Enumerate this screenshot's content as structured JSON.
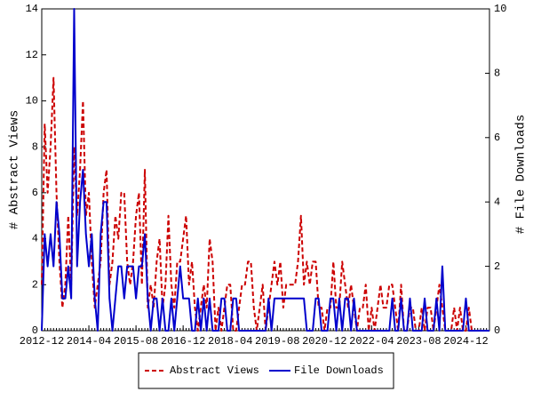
{
  "chart_data": {
    "type": "line",
    "x": [
      "2012-12",
      "2013-01",
      "2013-02",
      "2013-03",
      "2013-04",
      "2013-05",
      "2013-06",
      "2013-07",
      "2013-08",
      "2013-09",
      "2013-10",
      "2013-11",
      "2013-12",
      "2014-01",
      "2014-02",
      "2014-03",
      "2014-04",
      "2014-05",
      "2014-06",
      "2014-07",
      "2014-08",
      "2014-09",
      "2014-10",
      "2014-11",
      "2014-12",
      "2015-01",
      "2015-02",
      "2015-03",
      "2015-04",
      "2015-05",
      "2015-06",
      "2015-07",
      "2015-08",
      "2015-09",
      "2015-10",
      "2015-11",
      "2015-12",
      "2016-01",
      "2016-02",
      "2016-03",
      "2016-04",
      "2016-05",
      "2016-06",
      "2016-07",
      "2016-08",
      "2016-09",
      "2016-10",
      "2016-11",
      "2016-12",
      "2017-01",
      "2017-02",
      "2017-03",
      "2017-04",
      "2017-05",
      "2017-06",
      "2017-07",
      "2017-08",
      "2017-09",
      "2017-10",
      "2017-11",
      "2017-12",
      "2018-01",
      "2018-02",
      "2018-03",
      "2018-04",
      "2018-05",
      "2018-06",
      "2018-07",
      "2018-08",
      "2018-09",
      "2018-10",
      "2018-11",
      "2018-12",
      "2019-01",
      "2019-02",
      "2019-03",
      "2019-04",
      "2019-05",
      "2019-06",
      "2019-07",
      "2019-08",
      "2019-09",
      "2019-10",
      "2019-11",
      "2019-12",
      "2020-01",
      "2020-02",
      "2020-03",
      "2020-04",
      "2020-05",
      "2020-06",
      "2020-07",
      "2020-08",
      "2020-09",
      "2020-10",
      "2020-11",
      "2020-12",
      "2021-01",
      "2021-02",
      "2021-03",
      "2021-04",
      "2021-05",
      "2021-06",
      "2021-07",
      "2021-08",
      "2021-09",
      "2021-10",
      "2021-11",
      "2021-12",
      "2022-01",
      "2022-02",
      "2022-03",
      "2022-04",
      "2022-05",
      "2022-06",
      "2022-07",
      "2022-08",
      "2022-09",
      "2022-10",
      "2022-11",
      "2022-12",
      "2023-01",
      "2023-02",
      "2023-03",
      "2023-04",
      "2023-05",
      "2023-06",
      "2023-07",
      "2023-08",
      "2023-09",
      "2023-10",
      "2023-11",
      "2023-12",
      "2024-01",
      "2024-02",
      "2024-03",
      "2024-04",
      "2024-05",
      "2024-06",
      "2024-07",
      "2024-08",
      "2024-09",
      "2024-10",
      "2024-11",
      "2024-12",
      "2025-01",
      "2025-02",
      "2025-03",
      "2025-04",
      "2025-05",
      "2025-06",
      "2025-07",
      "2025-08"
    ],
    "xticks": [
      "2012-12",
      "2014-04",
      "2015-08",
      "2016-12",
      "2018-04",
      "2019-08",
      "2020-12",
      "2022-04",
      "2023-08",
      "2024-12"
    ],
    "y_label": "# Abstract Views",
    "y2_label": "# File Downloads",
    "ylim": [
      0,
      14
    ],
    "yticks": [
      0,
      2,
      4,
      6,
      8,
      10,
      12,
      14
    ],
    "y2lim": [
      0,
      10
    ],
    "y2ticks": [
      0,
      2,
      4,
      6,
      8,
      10
    ],
    "legend": "bottom",
    "series": [
      {
        "name": "Abstract Views",
        "color": "#cc0000",
        "dash": true,
        "values": [
          2,
          9,
          6,
          8,
          11,
          6,
          3,
          1,
          2,
          5,
          2,
          8,
          5,
          7,
          10,
          5,
          6,
          3,
          1,
          2,
          3,
          6,
          7,
          2,
          3,
          5,
          4,
          6,
          6,
          3,
          2,
          3,
          5,
          6,
          2,
          7,
          1,
          2,
          1,
          3,
          4,
          1,
          2,
          5,
          2,
          1,
          3,
          3,
          4,
          5,
          2,
          3,
          1,
          0,
          1,
          2,
          1,
          4,
          3,
          0,
          1,
          0,
          1,
          2,
          2,
          0,
          0,
          1,
          2,
          2,
          3,
          3,
          1,
          0,
          1,
          2,
          0,
          1,
          2,
          3,
          2,
          3,
          1,
          2,
          2,
          2,
          2,
          3,
          5,
          2,
          3,
          2,
          3,
          3,
          1,
          1,
          0,
          1,
          1,
          3,
          1,
          1,
          3,
          2,
          1,
          2,
          1,
          0,
          1,
          1,
          2,
          0,
          1,
          0,
          1,
          2,
          1,
          1,
          2,
          2,
          1,
          0,
          2,
          0,
          0,
          1,
          1,
          0,
          0,
          1,
          0,
          1,
          1,
          0,
          1,
          2,
          1,
          0,
          0,
          0,
          1,
          0,
          1,
          0,
          0,
          1,
          0,
          0,
          0,
          0,
          0,
          0,
          0
        ]
      },
      {
        "name": "File Downloads",
        "color": "#0000cc",
        "dash": false,
        "axis": "y2",
        "values": [
          0,
          3,
          2,
          3,
          2,
          4,
          3,
          1,
          1,
          2,
          1,
          10,
          2,
          4,
          5,
          3,
          2,
          3,
          1,
          0,
          3,
          4,
          4,
          1,
          0,
          1,
          2,
          2,
          1,
          2,
          2,
          2,
          1,
          2,
          2,
          3,
          1,
          0,
          1,
          1,
          0,
          1,
          0,
          0,
          1,
          0,
          1,
          2,
          1,
          1,
          1,
          0,
          0,
          1,
          0,
          1,
          0,
          1,
          0,
          0,
          0,
          1,
          1,
          0,
          0,
          1,
          1,
          0,
          0,
          0,
          0,
          0,
          0,
          0,
          0,
          0,
          0,
          1,
          0,
          1,
          1,
          1,
          1,
          1,
          1,
          1,
          1,
          1,
          1,
          1,
          0,
          0,
          0,
          1,
          1,
          0,
          0,
          0,
          1,
          1,
          0,
          1,
          0,
          1,
          1,
          0,
          1,
          0,
          0,
          0,
          0,
          0,
          0,
          0,
          0,
          0,
          0,
          0,
          0,
          1,
          0,
          0,
          1,
          0,
          0,
          1,
          0,
          0,
          0,
          0,
          1,
          0,
          0,
          0,
          1,
          0,
          2,
          0,
          0,
          0,
          0,
          0,
          0,
          0,
          1,
          0,
          0,
          0,
          0,
          0,
          0,
          0,
          0
        ]
      }
    ]
  }
}
